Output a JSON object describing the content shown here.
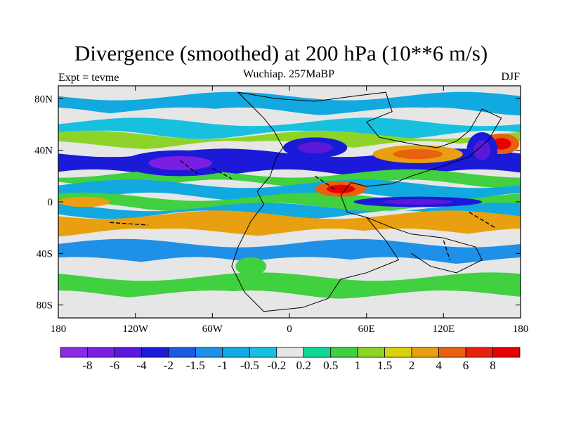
{
  "chart_data": {
    "type": "heatmap",
    "title": "Divergence (smoothed) at 200 hPa (10**6 m/s)",
    "subtitle": "Wuchiap. 257MaBP",
    "left_label": "Expt = tevme",
    "right_label": "DJF",
    "x_range": [
      -180,
      180
    ],
    "y_range": [
      -90,
      90
    ],
    "x_ticks": [
      {
        "value": -180,
        "label": "180"
      },
      {
        "value": -120,
        "label": "120W"
      },
      {
        "value": -60,
        "label": "60W"
      },
      {
        "value": 0,
        "label": "0"
      },
      {
        "value": 60,
        "label": "60E"
      },
      {
        "value": 120,
        "label": "120E"
      },
      {
        "value": 180,
        "label": "180"
      }
    ],
    "y_ticks": [
      {
        "value": 80,
        "label": "80N"
      },
      {
        "value": 40,
        "label": "40N"
      },
      {
        "value": 0,
        "label": "0"
      },
      {
        "value": -40,
        "label": "40S"
      },
      {
        "value": -80,
        "label": "80S"
      }
    ],
    "colorbar": {
      "levels": [
        "-8",
        "-6",
        "-4",
        "-2",
        "-1.5",
        "-1",
        "-0.5",
        "-0.2",
        "0.2",
        "0.5",
        "1",
        "1.5",
        "2",
        "4",
        "6",
        "8"
      ],
      "colors": [
        "#8a2be2",
        "#7a1fe0",
        "#5a18d8",
        "#1a1ad8",
        "#1e5ae0",
        "#1e90e8",
        "#12a8e0",
        "#18c0e0",
        "#e6e6e6",
        "#10d89a",
        "#40d040",
        "#8ed428",
        "#d8d010",
        "#e8a010",
        "#e86010",
        "#e82010",
        "#e80000"
      ]
    },
    "bands": [
      {
        "lat": 82,
        "lat2": 70,
        "value": -0.8
      },
      {
        "lat": 70,
        "lat2": 62,
        "value": 0.0
      },
      {
        "lat": 62,
        "lat2": 52,
        "value": -0.4
      },
      {
        "lat": 52,
        "lat2": 44,
        "value": 1.2
      },
      {
        "lat": 44,
        "lat2": 38,
        "value": 0.0
      },
      {
        "lat": 38,
        "lat2": 22,
        "value": -2.5
      },
      {
        "lat": 22,
        "lat2": 14,
        "value": 0.8
      },
      {
        "lat": 14,
        "lat2": 4,
        "value": -1.0
      },
      {
        "lat": 4,
        "lat2": -4,
        "value": 0.6
      },
      {
        "lat": -4,
        "lat2": -10,
        "value": -0.6
      },
      {
        "lat": -10,
        "lat2": -24,
        "value": 2.5
      },
      {
        "lat": -24,
        "lat2": -32,
        "value": 0.0
      },
      {
        "lat": -32,
        "lat2": -46,
        "value": -1.2
      },
      {
        "lat": -46,
        "lat2": -58,
        "value": 0.0
      },
      {
        "lat": -58,
        "lat2": -72,
        "value": 0.8
      },
      {
        "lat": -72,
        "lat2": -90,
        "value": 0.0
      }
    ],
    "anomalies": [
      {
        "lon": 40,
        "lat": 10,
        "rx": 20,
        "ry": 6,
        "value": 5
      },
      {
        "lon": 100,
        "lat": 37,
        "rx": 35,
        "ry": 7,
        "value": 3
      },
      {
        "lon": 165,
        "lat": 45,
        "rx": 14,
        "ry": 8,
        "value": 5
      },
      {
        "lon": -85,
        "lat": 30,
        "rx": 45,
        "ry": 10,
        "value": -4
      },
      {
        "lon": 20,
        "lat": 42,
        "rx": 25,
        "ry": 8,
        "value": -3
      },
      {
        "lon": 100,
        "lat": 0,
        "rx": 50,
        "ry": 4,
        "value": -3
      },
      {
        "lon": -160,
        "lat": 0,
        "rx": 20,
        "ry": 4,
        "value": 2
      },
      {
        "lon": -30,
        "lat": -50,
        "rx": 12,
        "ry": 7,
        "value": 0.6
      },
      {
        "lon": 150,
        "lat": 40,
        "rx": 12,
        "ry": 14,
        "value": -3
      }
    ]
  }
}
